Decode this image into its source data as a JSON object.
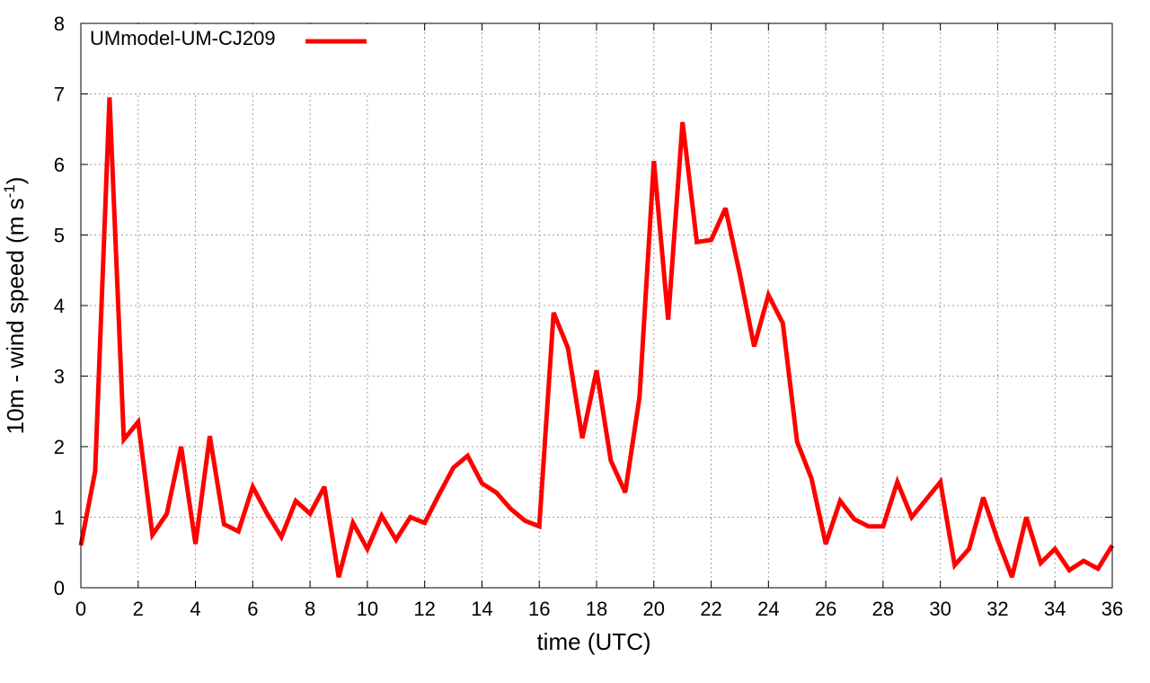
{
  "chart_data": {
    "type": "line",
    "title": "",
    "xlabel": "time (UTC)",
    "ylabel": "10m - wind speed  (m s-1)",
    "ylabel_parts": {
      "main": "10m - wind speed  (m s",
      "sup": "-1",
      "end": ")"
    },
    "xlim": [
      0,
      36
    ],
    "ylim": [
      0,
      8
    ],
    "xticks": [
      0,
      2,
      4,
      6,
      8,
      10,
      12,
      14,
      16,
      18,
      20,
      22,
      24,
      26,
      28,
      30,
      32,
      34,
      36
    ],
    "yticks": [
      0,
      1,
      2,
      3,
      4,
      5,
      6,
      7,
      8
    ],
    "grid": true,
    "legend_position": "top-left",
    "series": [
      {
        "name": "UMmodel-UM-CJ209",
        "color": "#ff0000",
        "x": [
          0,
          0.5,
          1,
          1.5,
          2,
          2.5,
          3,
          3.5,
          4,
          4.5,
          5,
          5.5,
          6,
          6.5,
          7,
          7.5,
          8,
          8.5,
          9,
          9.5,
          10,
          10.5,
          11,
          11.5,
          12,
          12.5,
          13,
          13.5,
          14,
          14.5,
          15,
          15.5,
          16,
          16.5,
          17,
          17.5,
          18,
          18.5,
          19,
          19.5,
          20,
          20.5,
          21,
          21.5,
          22,
          22.5,
          23,
          23.5,
          24,
          24.5,
          25,
          25.5,
          26,
          26.5,
          27,
          27.5,
          28,
          28.5,
          29,
          29.5,
          30,
          30.5,
          31,
          31.5,
          32,
          32.5,
          33,
          33.5,
          34,
          34.5,
          35,
          35.5,
          36
        ],
        "y": [
          0.6,
          1.65,
          6.95,
          2.1,
          2.35,
          0.75,
          1.05,
          2.0,
          0.62,
          2.15,
          0.9,
          0.8,
          1.43,
          1.05,
          0.72,
          1.23,
          1.05,
          1.43,
          0.15,
          0.92,
          0.55,
          1.02,
          0.68,
          1.0,
          0.92,
          1.32,
          1.7,
          1.87,
          1.48,
          1.35,
          1.12,
          0.95,
          0.87,
          3.9,
          3.4,
          2.12,
          3.08,
          1.8,
          1.35,
          2.7,
          6.05,
          3.8,
          6.6,
          4.9,
          4.93,
          5.38,
          4.45,
          3.42,
          4.15,
          3.75,
          2.07,
          1.55,
          0.62,
          1.23,
          0.97,
          0.87,
          0.87,
          1.5,
          1.0,
          1.25,
          1.5,
          0.32,
          0.55,
          1.28,
          0.68,
          0.15,
          1.0,
          0.35,
          0.55,
          0.25,
          0.38,
          0.27,
          0.6
        ]
      }
    ]
  }
}
